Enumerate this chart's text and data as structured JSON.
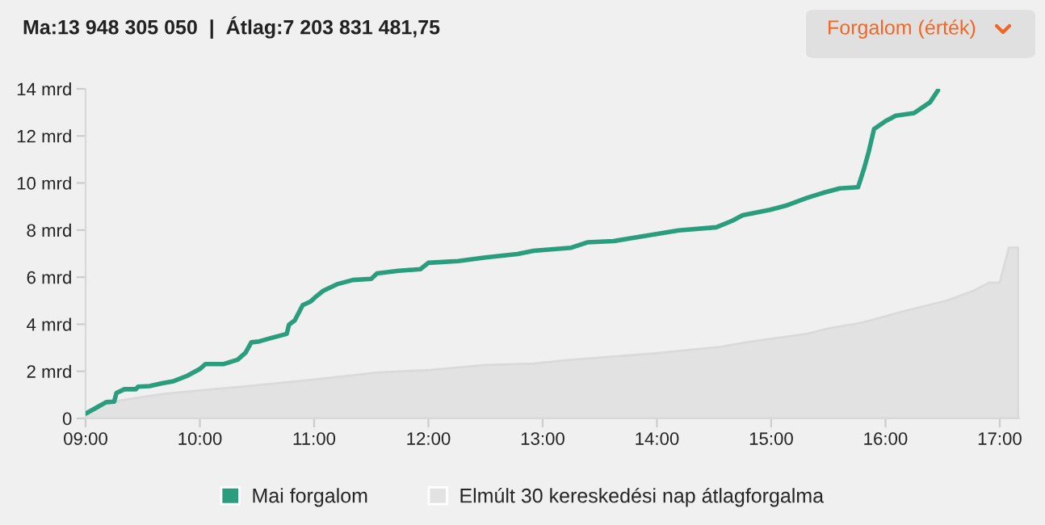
{
  "chart_data": {
    "type": "line",
    "title": "Ma:13 948 305 050  |  Átlag:7 203 831 481,75",
    "annotations": [
      "Forgalom (érték)"
    ],
    "xlim": [
      9,
      17.17
    ],
    "xticks": [
      {
        "value": 9,
        "label": "09:00"
      },
      {
        "value": 10,
        "label": "10:00"
      },
      {
        "value": 11,
        "label": "11:00"
      },
      {
        "value": 12,
        "label": "12:00"
      },
      {
        "value": 13,
        "label": "13:00"
      },
      {
        "value": 14,
        "label": "14:00"
      },
      {
        "value": 15,
        "label": "15:00"
      },
      {
        "value": 16,
        "label": "16:00"
      },
      {
        "value": 17,
        "label": "17:00"
      }
    ],
    "ylim": [
      0,
      14
    ],
    "yticks": [
      0,
      {
        "value": 2,
        "label": "2 mrd"
      },
      {
        "value": 4,
        "label": "4 mrd"
      },
      {
        "value": 6,
        "label": "6 mrd"
      },
      {
        "value": 8,
        "label": "8 mrd"
      },
      {
        "value": 10,
        "label": "10 mrd"
      },
      {
        "value": 12,
        "label": "12 mrd"
      },
      {
        "value": 14,
        "label": "14 mrd"
      }
    ],
    "grid": false,
    "legend": "bottom",
    "marker": "none",
    "line_style": "solid",
    "series": [
      {
        "name": "Mai forgalom",
        "type": "line",
        "color": "#2a9d7c",
        "x": [
          9.0,
          9.085,
          9.18,
          9.25,
          9.27,
          9.34,
          9.44,
          9.46,
          9.56,
          9.67,
          9.77,
          9.89,
          10.0,
          10.05,
          10.21,
          10.33,
          10.4,
          10.45,
          10.52,
          10.62,
          10.76,
          10.78,
          10.83,
          10.9,
          10.97,
          11.01,
          11.08,
          11.2,
          11.34,
          11.5,
          11.55,
          11.74,
          11.93,
          12.0,
          12.26,
          12.5,
          12.78,
          12.92,
          13.25,
          13.39,
          13.62,
          13.91,
          14.19,
          14.52,
          14.66,
          14.75,
          14.99,
          15.13,
          15.31,
          15.46,
          15.6,
          15.76,
          15.81,
          15.85,
          15.9,
          16.0,
          16.09,
          16.25,
          16.39,
          16.46
        ],
        "values": [
          0.2,
          0.43,
          0.69,
          0.71,
          1.08,
          1.24,
          1.24,
          1.35,
          1.37,
          1.49,
          1.58,
          1.81,
          2.1,
          2.31,
          2.31,
          2.49,
          2.79,
          3.23,
          3.27,
          3.41,
          3.59,
          3.98,
          4.16,
          4.81,
          4.97,
          5.15,
          5.42,
          5.7,
          5.88,
          5.93,
          6.16,
          6.27,
          6.34,
          6.61,
          6.68,
          6.84,
          6.98,
          7.12,
          7.25,
          7.48,
          7.53,
          7.76,
          7.99,
          8.12,
          8.4,
          8.63,
          8.86,
          9.04,
          9.36,
          9.59,
          9.77,
          9.82,
          10.57,
          11.26,
          12.29,
          12.63,
          12.86,
          12.97,
          13.43,
          13.94
        ]
      },
      {
        "name": "Elmúlt 30 kereskedési nap átlagforgalma",
        "type": "area",
        "color": "#e2e2e2",
        "x": [
          9.0,
          9.11,
          9.3,
          9.67,
          10.0,
          10.38,
          11.0,
          11.56,
          12.03,
          12.5,
          12.92,
          13.25,
          13.95,
          14.56,
          14.8,
          15.31,
          15.5,
          15.78,
          16.16,
          16.54,
          16.77,
          16.91,
          17.0,
          17.08,
          17.16
        ],
        "values": [
          0.05,
          0.55,
          0.76,
          1.03,
          1.19,
          1.35,
          1.65,
          1.95,
          2.06,
          2.27,
          2.33,
          2.49,
          2.75,
          3.04,
          3.25,
          3.59,
          3.82,
          4.05,
          4.55,
          5.01,
          5.42,
          5.77,
          5.77,
          7.25,
          7.25
        ]
      }
    ]
  }
}
